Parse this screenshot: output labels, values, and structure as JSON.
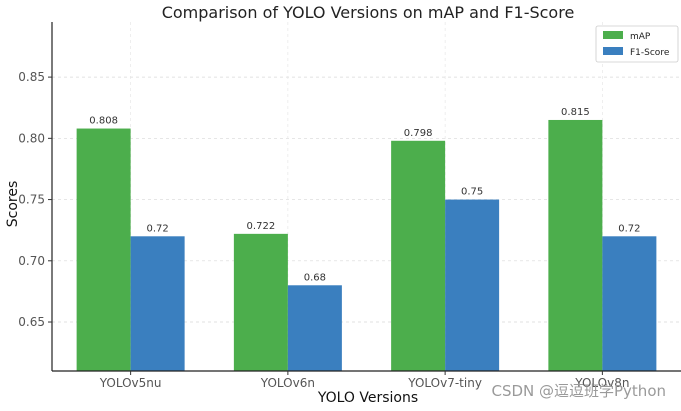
{
  "chart_data": {
    "type": "bar",
    "title": "Comparison of YOLO Versions on mAP and F1-Score",
    "xlabel": "YOLO Versions",
    "ylabel": "Scores",
    "categories": [
      "YOLOv5nu",
      "YOLOv6n",
      "YOLOv7-tiny",
      "YOLOv8n"
    ],
    "series": [
      {
        "name": "mAP",
        "values": [
          0.808,
          0.722,
          0.798,
          0.815
        ],
        "labels": [
          "0.808",
          "0.722",
          "0.798",
          "0.815"
        ],
        "color": "#4cae4c"
      },
      {
        "name": "F1-Score",
        "values": [
          0.72,
          0.68,
          0.75,
          0.72
        ],
        "labels": [
          "0.72",
          "0.68",
          "0.75",
          "0.72"
        ],
        "color": "#3a7fbf"
      }
    ],
    "ylim": [
      0.61,
      0.895
    ],
    "yticks": [
      "0.65",
      "0.70",
      "0.75",
      "0.80",
      "0.85"
    ],
    "grid": true,
    "legend_position": "top-right"
  },
  "watermark": "CSDN @逗逗班学Python"
}
